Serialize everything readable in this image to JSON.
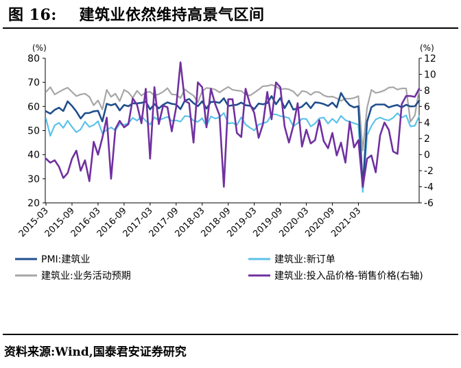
{
  "figure": {
    "title": "图 16:    建筑业依然维持高景气区间",
    "source": "资料来源:Wind,国泰君安证券研究"
  },
  "chart_data": {
    "type": "line",
    "unit_left": "(%)",
    "unit_right": "(%)",
    "ylim_left": [
      20,
      80
    ],
    "yticks_left": [
      "80",
      "70",
      "60",
      "50",
      "40",
      "30",
      "20"
    ],
    "ylim_right": [
      -6,
      12
    ],
    "yticks_right": [
      "12",
      "10",
      "8",
      "6",
      "4",
      "2",
      "0",
      "-2",
      "-4",
      "-6"
    ],
    "x_start": "2015-03",
    "x_tick_labels": [
      "2015-03",
      "2015-09",
      "2016-03",
      "2016-09",
      "2017-03",
      "2017-09",
      "2018-03",
      "2018-09",
      "2019-03",
      "2019-09",
      "2020-03",
      "2020-09",
      "2021-03"
    ],
    "legend_position": "bottom",
    "series": [
      {
        "name": "PMI:建筑业",
        "axis": "left",
        "color": "#1f4e8c",
        "width": 2.6,
        "values": [
          58.0,
          57.0,
          58.6,
          59.5,
          58.1,
          62.1,
          60.2,
          57.9,
          55.0,
          57.2,
          57.3,
          58.0,
          58.2,
          53.8,
          61.1,
          60.5,
          61.1,
          58.4,
          60.6,
          60.1,
          61.3,
          61.3,
          61.5,
          62.0,
          58.8,
          61.0,
          59.2,
          60.7,
          61.7,
          61.1,
          60.8,
          58.9,
          62.4,
          63.1,
          61.4,
          60.1,
          62.1,
          59.1,
          61.9,
          61.9,
          61.5,
          63.4,
          60.2,
          60.5,
          60.7,
          61.6,
          60.5,
          60.3,
          58.9,
          61.2,
          60.9,
          61.4,
          64.3,
          60.9,
          63.5,
          59.3,
          62.4,
          58.7,
          59.2,
          59.9,
          61.6,
          59.3,
          61.7,
          61.5,
          61.0,
          60.2,
          61.6,
          59.6,
          65.6,
          62.5,
          60.5,
          59.6,
          60.1,
          26.6,
          53.7,
          59.7,
          60.8,
          60.8,
          60.8,
          59.6,
          60.2,
          60.6,
          59.6,
          60.7,
          60.0,
          60.1,
          62.4
        ]
      },
      {
        "name": "建筑业:新订单",
        "axis": "left",
        "color": "#5bc2ea",
        "width": 2.2,
        "values": [
          55.0,
          47.8,
          52.2,
          53.2,
          51.1,
          54.1,
          51.5,
          49.3,
          50.5,
          53.7,
          51.5,
          52.3,
          53.9,
          48.8,
          50.3,
          51.3,
          50.1,
          52.8,
          52.4,
          53.0,
          55.3,
          54.1,
          55.9,
          54.0,
          52.5,
          55.5,
          54.2,
          55.0,
          55.7,
          54.0,
          54.2,
          53.7,
          56.0,
          55.9,
          54.1,
          53.6,
          55.1,
          51.9,
          55.9,
          55.0,
          55.5,
          57.3,
          52.9,
          53.2,
          52.3,
          55.5,
          52.5,
          51.2,
          50.0,
          52.5,
          53.0,
          53.6,
          56.7,
          56.7,
          56.0,
          55.7,
          55.2,
          51.8,
          53.0,
          54.9,
          54.8,
          51.7,
          52.9,
          55.1,
          55.4,
          52.9,
          54.9,
          53.2,
          56.1,
          54.3,
          53.7,
          53.0,
          52.5,
          24.5,
          48.0,
          51.9,
          54.6,
          55.4,
          54.6,
          54.2,
          55.3,
          57.2,
          55.4,
          56.3,
          51.7,
          52.0,
          56.0
        ]
      },
      {
        "name": "建筑业:业务活动预期",
        "axis": "left",
        "color": "#a6a6a6",
        "width": 2.2,
        "values": [
          66.0,
          68.0,
          65.0,
          66.0,
          67.0,
          67.8,
          66.0,
          64.3,
          65.0,
          65.3,
          64.0,
          60.5,
          62.5,
          58.8,
          66.9,
          64.0,
          65.3,
          62.2,
          66.9,
          65.8,
          63.6,
          66.5,
          64.5,
          65.8,
          66.1,
          64.5,
          65.1,
          66.1,
          67.6,
          65.0,
          64.9,
          63.5,
          67.1,
          65.7,
          64.5,
          61.7,
          66.3,
          67.7,
          67.5,
          67.0,
          65.8,
          67.0,
          68.1,
          66.9,
          66.6,
          66.4,
          65.0,
          64.5,
          65.7,
          67.0,
          68.4,
          68.5,
          69.0,
          68.3,
          67.1,
          67.4,
          67.1,
          66.2,
          64.3,
          66.4,
          66.1,
          64.8,
          66.0,
          65.9,
          64.6,
          64.0,
          64.1,
          63.4,
          62.3,
          63.3,
          63.2,
          63.5,
          64.3,
          41.7,
          59.5,
          66.9,
          65.6,
          66.0,
          66.7,
          67.8,
          68.0,
          67.0,
          67.5,
          67.5,
          53.6,
          56.3,
          67.0
        ]
      },
      {
        "name": "建筑业:投入品价格-销售价格(右轴)",
        "axis": "right",
        "color": "#7030a0",
        "width": 2.6,
        "values": [
          -0.5,
          -1.0,
          -0.7,
          -1.5,
          -2.9,
          -2.3,
          -0.5,
          0.5,
          -2.0,
          -0.7,
          -3.3,
          1.6,
          0.0,
          2.1,
          4.6,
          -3.0,
          3.2,
          4.2,
          3.4,
          3.8,
          7.0,
          6.2,
          3.9,
          8.2,
          -0.5,
          8.4,
          3.8,
          6.1,
          5.9,
          2.9,
          5.9,
          11.5,
          6.7,
          6.4,
          1.5,
          9.0,
          8.4,
          3.4,
          8.2,
          6.3,
          4.9,
          -4.0,
          6.9,
          6.9,
          2.7,
          2.2,
          8.2,
          6.3,
          5.2,
          2.1,
          3.8,
          7.8,
          4.4,
          9.0,
          8.4,
          3.5,
          1.5,
          3.6,
          6.4,
          1.0,
          3.1,
          1.4,
          1.8,
          4.3,
          1.7,
          0.8,
          2.7,
          -0.1,
          1.5,
          -1.0,
          4.1,
          0.9,
          1.8,
          -4.0,
          -0.5,
          -0.1,
          -2.2,
          2.4,
          4.0,
          3.1,
          0.4,
          0.1,
          6.3,
          7.3,
          7.3,
          7.2,
          8.2
        ]
      }
    ]
  }
}
